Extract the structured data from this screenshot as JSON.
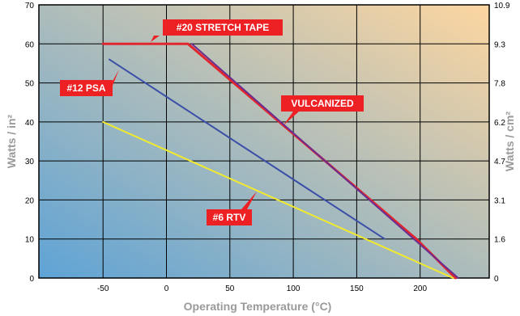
{
  "chart_data": {
    "type": "line",
    "title": "",
    "xlabel": "Operating Temperature (°C)",
    "ylabel": "Watts / in²",
    "y2label": "Watts / cm²",
    "xlim": [
      -100,
      255
    ],
    "ylim": [
      0,
      70
    ],
    "x_ticks": [
      -50,
      0,
      50,
      100,
      150,
      200
    ],
    "y_ticks": [
      0,
      10,
      20,
      30,
      40,
      50,
      60,
      70
    ],
    "y2_ticks": [
      "0",
      "1.6",
      "3.1",
      "4.7",
      "6.2",
      "7.8",
      "9.3",
      "10.9"
    ],
    "grid": true,
    "legend": "callouts",
    "background": {
      "from": "#5ea3d6",
      "to": "#fdd6a0"
    },
    "series": [
      {
        "name": "#20 STRETCH TAPE",
        "color": "#e0262f",
        "width": 3,
        "points": [
          [
            -50,
            60
          ],
          [
            17,
            60
          ],
          [
            197,
            10
          ],
          [
            228,
            0
          ]
        ]
      },
      {
        "name": "VULCANIZED",
        "color": "#6a2d90",
        "width": 2,
        "points": [
          [
            20,
            60
          ],
          [
            230,
            0
          ]
        ]
      },
      {
        "name": "#12 PSA",
        "color": "#3b4fa8",
        "width": 2,
        "points": [
          [
            -45,
            56
          ],
          [
            172,
            10
          ]
        ]
      },
      {
        "name": "#6 RTV",
        "color": "#f2ea2c",
        "width": 2,
        "points": [
          [
            -50,
            40
          ],
          [
            226,
            0
          ]
        ]
      }
    ],
    "callouts": [
      {
        "text": "#20 STRETCH TAPE",
        "series": 0
      },
      {
        "text": "#12 PSA",
        "series": 2
      },
      {
        "text": "VULCANIZED",
        "series": 1
      },
      {
        "text": "#6 RTV",
        "series": 3
      }
    ],
    "callout_color": "#ed2024"
  }
}
